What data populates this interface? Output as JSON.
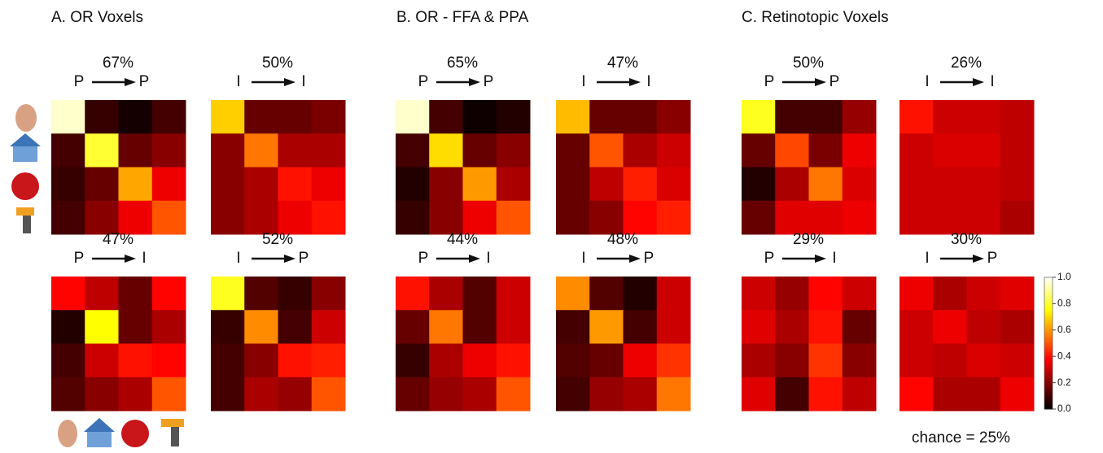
{
  "panels": [
    "A. OR Voxels",
    "B. OR - FFA & PPA",
    "C. Retinotopic Voxels"
  ],
  "note": "chance = 25%",
  "colorbar": {
    "colormap": "hot",
    "zlim": [
      0,
      1
    ],
    "zticks": [
      {
        "value": 0,
        "label": "0.0"
      },
      {
        "value": 0.2,
        "label": "0.2"
      },
      {
        "value": 0.4,
        "label": "0.4"
      },
      {
        "value": 0.6,
        "label": "0.6"
      },
      {
        "value": 0.8,
        "label": "0.8"
      },
      {
        "value": 1,
        "label": "1.0"
      }
    ]
  },
  "chart_data": [
    {
      "type": "heatmap",
      "title": "67%",
      "from": "P",
      "to": "P",
      "values": [
        [
          0.95,
          0.08,
          0.03,
          0.1
        ],
        [
          0.1,
          0.8,
          0.15,
          0.2
        ],
        [
          0.08,
          0.15,
          0.62,
          0.35
        ],
        [
          0.1,
          0.2,
          0.35,
          0.5
        ]
      ]
    },
    {
      "type": "heatmap",
      "title": "50%",
      "from": "I",
      "to": "I",
      "values": [
        [
          0.68,
          0.15,
          0.15,
          0.18
        ],
        [
          0.2,
          0.55,
          0.25,
          0.25
        ],
        [
          0.2,
          0.25,
          0.4,
          0.35
        ],
        [
          0.2,
          0.25,
          0.35,
          0.4
        ]
      ]
    },
    {
      "type": "heatmap",
      "title": "47%",
      "from": "P",
      "to": "I",
      "values": [
        [
          0.38,
          0.28,
          0.15,
          0.38
        ],
        [
          0.05,
          0.75,
          0.15,
          0.25
        ],
        [
          0.1,
          0.3,
          0.4,
          0.38
        ],
        [
          0.12,
          0.2,
          0.25,
          0.5
        ]
      ]
    },
    {
      "type": "heatmap",
      "title": "52%",
      "from": "I",
      "to": "P",
      "values": [
        [
          0.78,
          0.12,
          0.08,
          0.2
        ],
        [
          0.08,
          0.58,
          0.1,
          0.3
        ],
        [
          0.1,
          0.2,
          0.4,
          0.42
        ],
        [
          0.1,
          0.25,
          0.22,
          0.5
        ]
      ]
    },
    {
      "type": "heatmap",
      "title": "65%",
      "from": "P",
      "to": "P",
      "values": [
        [
          0.95,
          0.1,
          0.02,
          0.05
        ],
        [
          0.1,
          0.7,
          0.15,
          0.2
        ],
        [
          0.05,
          0.2,
          0.6,
          0.25
        ],
        [
          0.08,
          0.2,
          0.35,
          0.5
        ]
      ]
    },
    {
      "type": "heatmap",
      "title": "47%",
      "from": "I",
      "to": "I",
      "values": [
        [
          0.65,
          0.15,
          0.15,
          0.2
        ],
        [
          0.15,
          0.5,
          0.25,
          0.3
        ],
        [
          0.15,
          0.28,
          0.42,
          0.32
        ],
        [
          0.15,
          0.2,
          0.38,
          0.42
        ]
      ]
    },
    {
      "type": "heatmap",
      "title": "44%",
      "from": "P",
      "to": "I",
      "values": [
        [
          0.4,
          0.25,
          0.12,
          0.3
        ],
        [
          0.15,
          0.55,
          0.12,
          0.3
        ],
        [
          0.08,
          0.25,
          0.35,
          0.4
        ],
        [
          0.15,
          0.22,
          0.25,
          0.5
        ]
      ]
    },
    {
      "type": "heatmap",
      "title": "48%",
      "from": "I",
      "to": "P",
      "values": [
        [
          0.58,
          0.12,
          0.05,
          0.3
        ],
        [
          0.1,
          0.6,
          0.1,
          0.3
        ],
        [
          0.12,
          0.15,
          0.35,
          0.45
        ],
        [
          0.1,
          0.22,
          0.25,
          0.55
        ]
      ]
    },
    {
      "type": "heatmap",
      "title": "50%",
      "from": "P",
      "to": "P",
      "values": [
        [
          0.78,
          0.1,
          0.1,
          0.22
        ],
        [
          0.15,
          0.48,
          0.18,
          0.35
        ],
        [
          0.05,
          0.25,
          0.55,
          0.32
        ],
        [
          0.15,
          0.33,
          0.33,
          0.35
        ]
      ]
    },
    {
      "type": "heatmap",
      "title": "26%",
      "from": "I",
      "to": "I",
      "values": [
        [
          0.4,
          0.3,
          0.3,
          0.28
        ],
        [
          0.3,
          0.32,
          0.32,
          0.28
        ],
        [
          0.3,
          0.3,
          0.3,
          0.28
        ],
        [
          0.3,
          0.3,
          0.3,
          0.25
        ]
      ]
    },
    {
      "type": "heatmap",
      "title": "29%",
      "from": "P",
      "to": "I",
      "values": [
        [
          0.3,
          0.22,
          0.38,
          0.3
        ],
        [
          0.33,
          0.25,
          0.4,
          0.15
        ],
        [
          0.25,
          0.2,
          0.45,
          0.2
        ],
        [
          0.33,
          0.1,
          0.4,
          0.28
        ]
      ]
    },
    {
      "type": "heatmap",
      "title": "30%",
      "from": "I",
      "to": "P",
      "values": [
        [
          0.35,
          0.25,
          0.3,
          0.33
        ],
        [
          0.3,
          0.35,
          0.28,
          0.25
        ],
        [
          0.3,
          0.28,
          0.32,
          0.3
        ],
        [
          0.38,
          0.25,
          0.25,
          0.35
        ]
      ]
    }
  ]
}
